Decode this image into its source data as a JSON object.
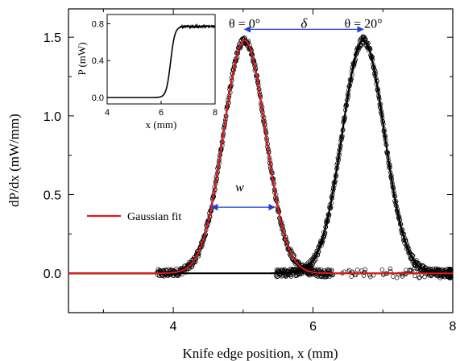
{
  "chart_data": [
    {
      "type": "scatter",
      "xlabel": "Knife edge position, x (mm)",
      "ylabel": "dP/dx (mW/mm)",
      "xlim": [
        2.5,
        8.0
      ],
      "ylim": [
        -0.25,
        1.68
      ],
      "xticks": [
        4,
        6,
        8
      ],
      "yticks": [
        0.0,
        0.5,
        1.0,
        1.5
      ],
      "xtick_labels": [
        "4",
        "6",
        "8"
      ],
      "ytick_labels": [
        "0.0",
        "0.5",
        "1.0",
        "1.5"
      ],
      "grid": false,
      "legend": {
        "position": "middle-left",
        "entries": [
          "Gaussian fit"
        ]
      },
      "series": [
        {
          "name": "θ = 0°",
          "kind": "scatter",
          "color": "#000000",
          "peak_x": 5.02,
          "amplitude": 1.48,
          "sigma": 0.3,
          "baseline": 0.0
        },
        {
          "name": "θ = 20°",
          "kind": "scatter",
          "color": "#000000",
          "peak_x": 6.72,
          "amplitude": 1.48,
          "sigma": 0.3,
          "baseline": 0.0
        },
        {
          "name": "Gaussian fit",
          "kind": "line",
          "color": "#e31a1c",
          "peak_x": 5.02,
          "amplitude": 1.48,
          "sigma": 0.3,
          "baseline": 0.0
        }
      ],
      "annotations": [
        {
          "text": "θ = 0°",
          "x": 5.02,
          "y": 1.59
        },
        {
          "text": "θ = 20°",
          "x": 6.72,
          "y": 1.59
        },
        {
          "text": "δ",
          "x": 5.87,
          "y": 1.59
        },
        {
          "text": "w",
          "x": 4.95,
          "y": 0.55
        }
      ],
      "arrows": [
        {
          "name": "delta-arrow",
          "x1": 5.02,
          "x2": 6.72,
          "y": 1.55,
          "color": "#1f3fd8"
        },
        {
          "name": "width-arrow",
          "x1": 4.55,
          "x2": 5.45,
          "y": 0.42,
          "color": "#1f3fd8"
        }
      ]
    },
    {
      "type": "line",
      "xlabel": "x (mm)",
      "ylabel": "P (mW)",
      "xlim": [
        4,
        8
      ],
      "ylim": [
        -0.07,
        0.9
      ],
      "xticks": [
        4,
        6,
        8
      ],
      "yticks": [
        0.0,
        0.4,
        0.8
      ],
      "xtick_labels": [
        "4",
        "6",
        "8"
      ],
      "ytick_labels": [
        "0.0",
        "0.4",
        "0.8"
      ],
      "series": [
        {
          "name": "P",
          "color": "#000000",
          "center": 6.35,
          "plateau": 0.77,
          "steepness": 12.5,
          "baseline": 0.0
        }
      ]
    }
  ]
}
